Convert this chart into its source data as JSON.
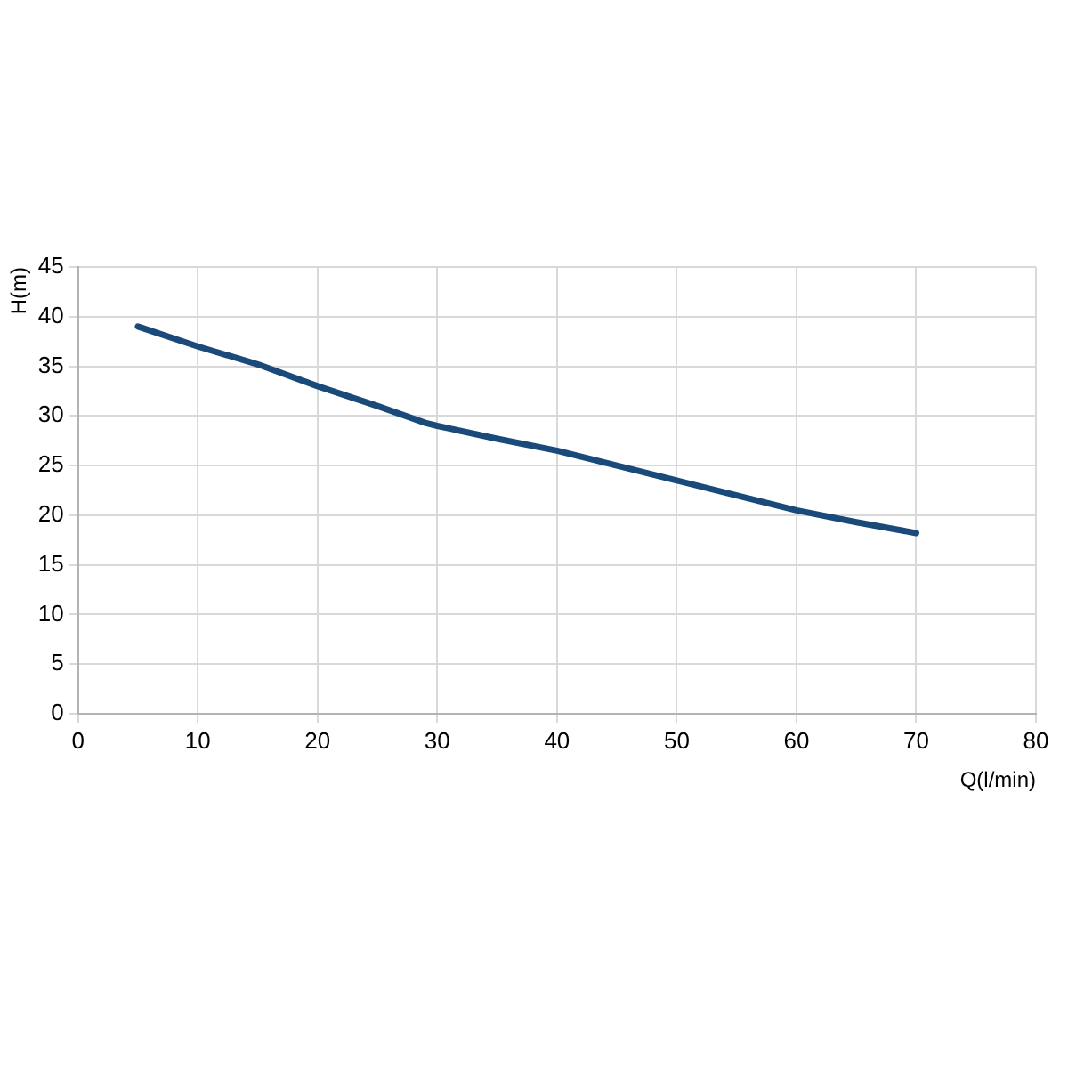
{
  "chart_data": {
    "type": "line",
    "xlabel": "Q(l/min)",
    "ylabel": "H(m)",
    "x": [
      5,
      10,
      15,
      20,
      25,
      29,
      30,
      35,
      40,
      45,
      50,
      55,
      60,
      65,
      70
    ],
    "series": [
      {
        "color": "#1a4a7a",
        "values": [
          39,
          37,
          35.2,
          33,
          31,
          29.3,
          29,
          27.7,
          26.5,
          25,
          23.5,
          22,
          20.5,
          19.3,
          18.2
        ]
      }
    ],
    "xlim": [
      0,
      80
    ],
    "xticks": [
      0,
      10,
      20,
      30,
      40,
      50,
      60,
      70,
      80
    ],
    "ylim": [
      0,
      45
    ],
    "yticks": [
      0,
      5,
      10,
      15,
      20,
      25,
      30,
      35,
      40,
      45
    ],
    "grid": true,
    "legend": false,
    "marker": "none",
    "line_style": "solid"
  }
}
